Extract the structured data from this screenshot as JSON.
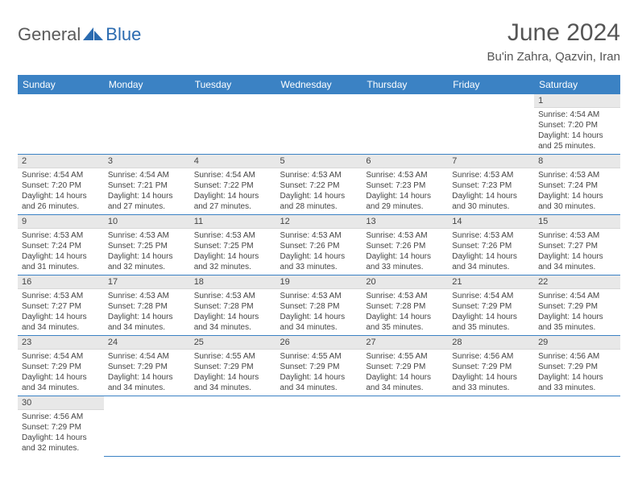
{
  "logo": {
    "dark": "General",
    "blue": "Blue"
  },
  "title": "June 2024",
  "location": "Bu'in Zahra, Qazvin, Iran",
  "colors": {
    "header_bg": "#3b82c4",
    "header_text": "#ffffff",
    "daynum_bg": "#e8e8e8",
    "cell_border": "#3b82c4",
    "text": "#444444",
    "logo_dark": "#5a5a5a",
    "logo_blue": "#2b6bb0"
  },
  "weekdays": [
    "Sunday",
    "Monday",
    "Tuesday",
    "Wednesday",
    "Thursday",
    "Friday",
    "Saturday"
  ],
  "weeks": [
    [
      null,
      null,
      null,
      null,
      null,
      null,
      {
        "n": "1",
        "sr": "4:54 AM",
        "ss": "7:20 PM",
        "dl": "14 hours and 25 minutes."
      }
    ],
    [
      {
        "n": "2",
        "sr": "4:54 AM",
        "ss": "7:20 PM",
        "dl": "14 hours and 26 minutes."
      },
      {
        "n": "3",
        "sr": "4:54 AM",
        "ss": "7:21 PM",
        "dl": "14 hours and 27 minutes."
      },
      {
        "n": "4",
        "sr": "4:54 AM",
        "ss": "7:22 PM",
        "dl": "14 hours and 27 minutes."
      },
      {
        "n": "5",
        "sr": "4:53 AM",
        "ss": "7:22 PM",
        "dl": "14 hours and 28 minutes."
      },
      {
        "n": "6",
        "sr": "4:53 AM",
        "ss": "7:23 PM",
        "dl": "14 hours and 29 minutes."
      },
      {
        "n": "7",
        "sr": "4:53 AM",
        "ss": "7:23 PM",
        "dl": "14 hours and 30 minutes."
      },
      {
        "n": "8",
        "sr": "4:53 AM",
        "ss": "7:24 PM",
        "dl": "14 hours and 30 minutes."
      }
    ],
    [
      {
        "n": "9",
        "sr": "4:53 AM",
        "ss": "7:24 PM",
        "dl": "14 hours and 31 minutes."
      },
      {
        "n": "10",
        "sr": "4:53 AM",
        "ss": "7:25 PM",
        "dl": "14 hours and 32 minutes."
      },
      {
        "n": "11",
        "sr": "4:53 AM",
        "ss": "7:25 PM",
        "dl": "14 hours and 32 minutes."
      },
      {
        "n": "12",
        "sr": "4:53 AM",
        "ss": "7:26 PM",
        "dl": "14 hours and 33 minutes."
      },
      {
        "n": "13",
        "sr": "4:53 AM",
        "ss": "7:26 PM",
        "dl": "14 hours and 33 minutes."
      },
      {
        "n": "14",
        "sr": "4:53 AM",
        "ss": "7:26 PM",
        "dl": "14 hours and 34 minutes."
      },
      {
        "n": "15",
        "sr": "4:53 AM",
        "ss": "7:27 PM",
        "dl": "14 hours and 34 minutes."
      }
    ],
    [
      {
        "n": "16",
        "sr": "4:53 AM",
        "ss": "7:27 PM",
        "dl": "14 hours and 34 minutes."
      },
      {
        "n": "17",
        "sr": "4:53 AM",
        "ss": "7:28 PM",
        "dl": "14 hours and 34 minutes."
      },
      {
        "n": "18",
        "sr": "4:53 AM",
        "ss": "7:28 PM",
        "dl": "14 hours and 34 minutes."
      },
      {
        "n": "19",
        "sr": "4:53 AM",
        "ss": "7:28 PM",
        "dl": "14 hours and 34 minutes."
      },
      {
        "n": "20",
        "sr": "4:53 AM",
        "ss": "7:28 PM",
        "dl": "14 hours and 35 minutes."
      },
      {
        "n": "21",
        "sr": "4:54 AM",
        "ss": "7:29 PM",
        "dl": "14 hours and 35 minutes."
      },
      {
        "n": "22",
        "sr": "4:54 AM",
        "ss": "7:29 PM",
        "dl": "14 hours and 35 minutes."
      }
    ],
    [
      {
        "n": "23",
        "sr": "4:54 AM",
        "ss": "7:29 PM",
        "dl": "14 hours and 34 minutes."
      },
      {
        "n": "24",
        "sr": "4:54 AM",
        "ss": "7:29 PM",
        "dl": "14 hours and 34 minutes."
      },
      {
        "n": "25",
        "sr": "4:55 AM",
        "ss": "7:29 PM",
        "dl": "14 hours and 34 minutes."
      },
      {
        "n": "26",
        "sr": "4:55 AM",
        "ss": "7:29 PM",
        "dl": "14 hours and 34 minutes."
      },
      {
        "n": "27",
        "sr": "4:55 AM",
        "ss": "7:29 PM",
        "dl": "14 hours and 34 minutes."
      },
      {
        "n": "28",
        "sr": "4:56 AM",
        "ss": "7:29 PM",
        "dl": "14 hours and 33 minutes."
      },
      {
        "n": "29",
        "sr": "4:56 AM",
        "ss": "7:29 PM",
        "dl": "14 hours and 33 minutes."
      }
    ],
    [
      {
        "n": "30",
        "sr": "4:56 AM",
        "ss": "7:29 PM",
        "dl": "14 hours and 32 minutes."
      },
      null,
      null,
      null,
      null,
      null,
      null
    ]
  ],
  "labels": {
    "sunrise": "Sunrise: ",
    "sunset": "Sunset: ",
    "daylight": "Daylight: "
  }
}
